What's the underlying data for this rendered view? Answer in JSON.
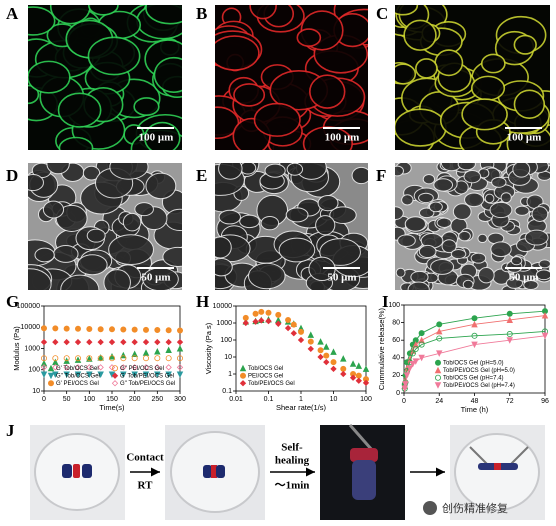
{
  "panel_labels": [
    "A",
    "B",
    "C",
    "D",
    "E",
    "F",
    "G",
    "H",
    "I",
    "J"
  ],
  "scale_bars": [
    "100 μm",
    "100 μm",
    "100 μm",
    "50 μm",
    "50 μm",
    "50 μm"
  ],
  "panel_j": {
    "contact": "Contact",
    "temperature": "RT",
    "self": "Self-",
    "healing": "healing",
    "time": "～1min"
  },
  "watermark": "创伤精准修复",
  "chart_data": [
    {
      "type": "scatter",
      "xlabel": "Time(s)",
      "ylabel": "Modulus (Pa)",
      "xlim": [
        0,
        300
      ],
      "xticks": [
        0,
        50,
        100,
        150,
        200,
        250,
        300
      ],
      "ylim": [
        10,
        100000
      ],
      "yticks": [
        10,
        100,
        1000,
        10000,
        100000
      ],
      "ylog": true,
      "legend": "lower left",
      "legend_columns": 2,
      "x": [
        0,
        25,
        50,
        75,
        100,
        125,
        150,
        175,
        200,
        225,
        250,
        275,
        300
      ],
      "series": [
        {
          "name": "G' Tob/OCS Gel",
          "color": "#2ca44e",
          "marker": "triangle",
          "values": [
            200,
            230,
            260,
            290,
            330,
            370,
            420,
            480,
            550,
            630,
            720,
            850,
            1000
          ]
        },
        {
          "name": "G'' Tob/OCS Gel",
          "color": "#2a9aa0",
          "marker": "triangle-down",
          "values": [
            60,
            60,
            60,
            60,
            60,
            60,
            60,
            60,
            60,
            60,
            60,
            60,
            60
          ]
        },
        {
          "name": "G' PEI/OCS Gel",
          "color": "#f28c28",
          "marker": "circle",
          "values": [
            9000,
            8800,
            8600,
            8500,
            8300,
            8100,
            8000,
            7800,
            7700,
            7500,
            7400,
            7200,
            7000
          ]
        },
        {
          "name": "G'' PEI/OCS Gel",
          "color": "#f28c28",
          "marker": "circle-open",
          "values": [
            350,
            350,
            350,
            350,
            350,
            350,
            350,
            350,
            350,
            350,
            350,
            350,
            350
          ]
        },
        {
          "name": "G' Tob/PEI/OCS Gel",
          "color": "#e0303a",
          "marker": "diamond",
          "values": [
            2000,
            2000,
            2000,
            2000,
            2000,
            2000,
            2000,
            2000,
            2000,
            2000,
            2000,
            2000,
            2000
          ]
        },
        {
          "name": "G'' Tob/PEI/OCS Gel",
          "color": "#f07a9a",
          "marker": "diamond-open",
          "values": [
            130,
            130,
            130,
            130,
            130,
            130,
            130,
            130,
            130,
            130,
            130,
            130,
            130
          ]
        }
      ]
    },
    {
      "type": "scatter",
      "xlabel": "Shear rate(1/s)",
      "ylabel": "Viscosity (Pa s)",
      "xlim": [
        0.01,
        100
      ],
      "xticks": [
        0.01,
        0.1,
        1,
        10,
        100
      ],
      "xlog": true,
      "ylim": [
        0.1,
        10000
      ],
      "yticks": [
        0.1,
        1,
        10,
        100,
        1000,
        10000
      ],
      "ylog": true,
      "legend": "lower left",
      "legend_columns": 1,
      "x": [
        0.02,
        0.04,
        0.06,
        0.1,
        0.2,
        0.4,
        0.6,
        1,
        2,
        4,
        6,
        10,
        20,
        40,
        60,
        100
      ],
      "series": [
        {
          "name": "Tob/OCS Gel",
          "color": "#2ca44e",
          "marker": "triangle",
          "values": [
            1200,
            1300,
            1500,
            1600,
            1500,
            1200,
            900,
            500,
            200,
            80,
            40,
            20,
            8,
            4,
            3,
            2
          ]
        },
        {
          "name": "PEI/OCS Gel",
          "color": "#f28c28",
          "marker": "circle",
          "values": [
            2000,
            3500,
            4500,
            4000,
            3000,
            1500,
            800,
            300,
            80,
            25,
            12,
            5,
            2,
            1,
            0.8,
            0.5
          ]
        },
        {
          "name": "Tob/PEI/OCS Gel",
          "color": "#e0303a",
          "marker": "diamond",
          "values": [
            1000,
            1200,
            1400,
            1300,
            900,
            500,
            250,
            100,
            30,
            10,
            5,
            2,
            1,
            0.6,
            0.4,
            0.3
          ]
        }
      ]
    },
    {
      "type": "line",
      "xlabel": "Time (h)",
      "ylabel": "Cummulative release(%)",
      "xlim": [
        0,
        96
      ],
      "xticks": [
        0,
        24,
        48,
        72,
        96
      ],
      "ylim": [
        0,
        100
      ],
      "yticks": [
        0,
        20,
        40,
        60,
        80,
        100
      ],
      "legend": "lower right",
      "legend_columns": 1,
      "x": [
        0.5,
        1,
        2,
        4,
        6,
        8,
        12,
        24,
        48,
        72,
        96
      ],
      "series": [
        {
          "name": "Tob/OCS Gel (pH=5.0)",
          "color": "#2ca44e",
          "marker": "circle",
          "values": [
            10,
            20,
            35,
            45,
            55,
            60,
            68,
            78,
            85,
            90,
            93
          ]
        },
        {
          "name": "Tob/PEI/OCS Gel (pH=5.0)",
          "color": "#f07070",
          "marker": "triangle",
          "values": [
            8,
            15,
            28,
            38,
            48,
            55,
            60,
            70,
            78,
            83,
            88
          ]
        },
        {
          "name": "Tob/OCS Gel (pH=7.4)",
          "color": "#2ca44e",
          "marker": "circle-open",
          "values": [
            5,
            12,
            25,
            35,
            45,
            50,
            55,
            62,
            65,
            67,
            70
          ]
        },
        {
          "name": "Tob/PEI/OCS Gel (pH=7.4)",
          "color": "#f07a9a",
          "marker": "triangle-down",
          "values": [
            5,
            10,
            20,
            28,
            33,
            36,
            40,
            45,
            55,
            60,
            65
          ]
        }
      ]
    }
  ]
}
